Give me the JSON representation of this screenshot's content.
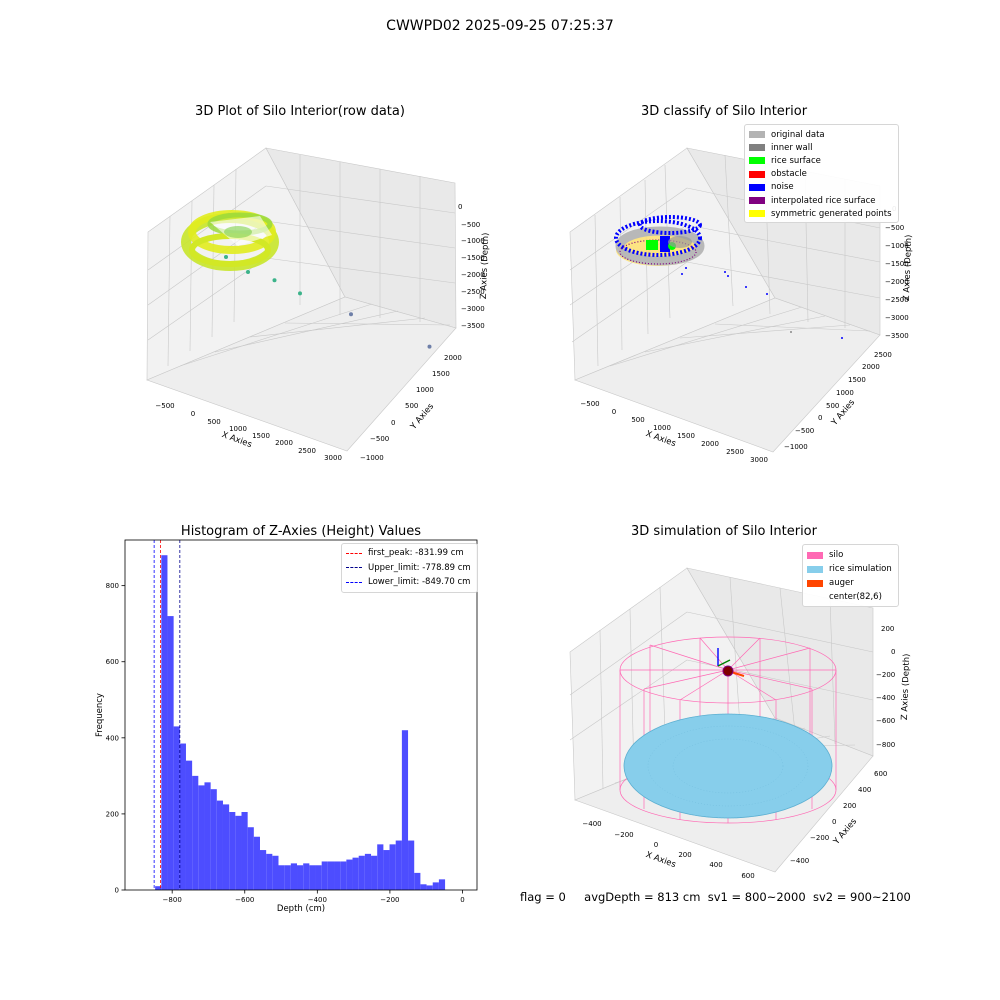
{
  "figure_title": "CWWPD02 2025-09-25 07:25:37",
  "footer": {
    "flag": "flag = 0",
    "avg_depth": "avgDepth = 813 cm",
    "sv1": "sv1 = 800~2000",
    "sv2": "sv2 = 900~2100"
  },
  "colors": {
    "original_data": "#b3b3b3",
    "inner_wall": "#808080",
    "rice_surface": "#00ff00",
    "obstacle": "#ff0000",
    "noise": "#0000ff",
    "interpolated_rice_surface": "#800080",
    "symmetric_generated_points": "#ffff00",
    "histogram_bar": "#4d4dff",
    "silo": "#ff69b4",
    "rice_simulation": "#87ceeb",
    "auger": "#ff4500"
  },
  "chart_data": [
    {
      "id": "raw",
      "type": "scatter",
      "title": "3D Plot of Silo Interior(row data)",
      "xlabel": "X Axies",
      "ylabel": "Y Axies",
      "zlabel": "Z Axies (Depth)",
      "x_ticks": [
        "−500",
        "0",
        "500",
        "1000",
        "1500",
        "2000",
        "2500",
        "3000"
      ],
      "y_ticks": [
        "−1000",
        "−500",
        "0",
        "500",
        "1000",
        "1500",
        "2000"
      ],
      "z_ticks": [
        "0",
        "−500",
        "−1000",
        "−1500",
        "−2000",
        "−2500",
        "−3000",
        "−3500"
      ],
      "outliers": [
        {
          "x": 300,
          "y": -200,
          "z": -1200
        },
        {
          "x": 550,
          "y": -100,
          "z": -1600
        },
        {
          "x": 800,
          "y": 100,
          "z": -1800
        },
        {
          "x": 1100,
          "y": 200,
          "z": -2100
        },
        {
          "x": 1700,
          "y": 400,
          "z": -2500
        },
        {
          "x": 2500,
          "y": 900,
          "z": -3300
        }
      ]
    },
    {
      "id": "classify",
      "type": "scatter",
      "title": "3D classify of Silo Interior",
      "xlabel": "X Axies",
      "ylabel": "Y Axies",
      "zlabel": "Z Axies (Depth)",
      "x_ticks": [
        "−500",
        "0",
        "500",
        "1000",
        "1500",
        "2000",
        "2500",
        "3000"
      ],
      "y_ticks": [
        "−1000",
        "−500",
        "0",
        "500",
        "1000",
        "1500",
        "2000",
        "2500"
      ],
      "z_ticks": [
        "0",
        "−500",
        "−1000",
        "−1500",
        "−2000",
        "−2500",
        "−3000",
        "−3500"
      ],
      "legend": [
        {
          "label": "original data",
          "color": "#b3b3b3"
        },
        {
          "label": "inner wall",
          "color": "#808080"
        },
        {
          "label": "rice surface",
          "color": "#00ff00"
        },
        {
          "label": "obstacle",
          "color": "#ff0000"
        },
        {
          "label": "noise",
          "color": "#0000ff"
        },
        {
          "label": "interpolated rice surface",
          "color": "#800080"
        },
        {
          "label": "symmetric generated points",
          "color": "#ffff00"
        }
      ]
    },
    {
      "id": "hist",
      "type": "bar",
      "title": "Histogram of Z-Axies (Height) Values",
      "xlabel": "Depth (cm)",
      "ylabel": "Frequency",
      "xlim": [
        -930,
        40
      ],
      "ylim": [
        0,
        920
      ],
      "x_ticks": [
        -800,
        -600,
        -400,
        -200,
        0
      ],
      "y_ticks": [
        0,
        200,
        400,
        600,
        800
      ],
      "bin_start": -847,
      "bin_width": 17,
      "values": [
        10,
        880,
        720,
        430,
        385,
        340,
        300,
        275,
        283,
        265,
        235,
        225,
        205,
        195,
        205,
        165,
        140,
        105,
        95,
        90,
        65,
        65,
        70,
        65,
        70,
        65,
        65,
        75,
        75,
        75,
        75,
        80,
        85,
        90,
        95,
        90,
        120,
        105,
        120,
        130,
        420,
        130,
        45,
        15,
        12,
        20,
        28
      ],
      "vlines": [
        {
          "label": "first_peak: -831.99 cm",
          "x": -831.99,
          "color": "#ff0000"
        },
        {
          "label": "Upper_limit: -778.89 cm",
          "x": -778.89,
          "color": "#00008b"
        },
        {
          "label": "Lower_limit: -849.70 cm",
          "x": -849.7,
          "color": "#0000ff"
        }
      ]
    },
    {
      "id": "sim",
      "type": "surface",
      "title": "3D simulation of Silo Interior",
      "xlabel": "X Axies",
      "ylabel": "Y Axies",
      "zlabel": "Z Axies (Depth)",
      "x_ticks": [
        "−400",
        "−200",
        "0",
        "200",
        "400",
        "600"
      ],
      "y_ticks": [
        "−400",
        "−200",
        "0",
        "200",
        "400",
        "600"
      ],
      "z_ticks": [
        "200",
        "0",
        "−200",
        "−400",
        "−600",
        "−800"
      ],
      "legend": [
        {
          "label": "silo",
          "color": "#ff69b4"
        },
        {
          "label": "rice simulation",
          "color": "#87ceeb"
        },
        {
          "label": "auger",
          "color": "#ff4500"
        },
        {
          "label": "center(82,6)",
          "color": ""
        }
      ],
      "center": {
        "x": 82,
        "y": 6
      }
    }
  ]
}
